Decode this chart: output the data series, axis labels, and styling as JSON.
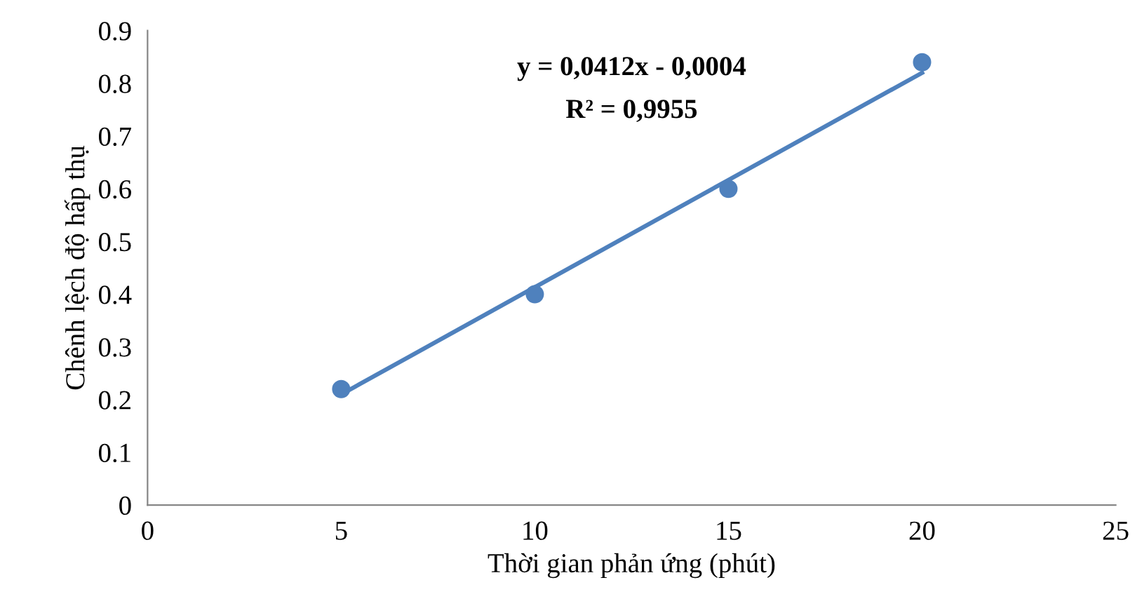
{
  "chart_data": {
    "type": "line",
    "xlabel": "Thời gian phản ứng (phút)",
    "ylabel": "Chênh lệch độ hấp thụ",
    "series": [
      {
        "type": "scatter",
        "color": "#4f81bd",
        "x": [
          5,
          10,
          15,
          20
        ],
        "values": [
          0.22,
          0.4,
          0.6,
          0.84
        ],
        "marker": "circle"
      },
      {
        "color": "#4f81bd",
        "x": [
          5,
          20
        ],
        "values": [
          0.21,
          0.82
        ],
        "marker": "none",
        "line_style": "solid"
      }
    ],
    "annotations": [
      "y = 0,0412x - 0,0004",
      "R² = 0,9955"
    ],
    "xlim": [
      0,
      25
    ],
    "xticks": [
      0,
      5,
      10,
      15,
      20,
      25
    ],
    "ylim": [
      0,
      0.9
    ],
    "yticks": [
      0,
      0.1,
      0.2,
      0.3,
      0.4,
      0.5,
      0.6,
      0.7,
      0.8,
      0.9
    ],
    "grid": false,
    "legend": false
  }
}
